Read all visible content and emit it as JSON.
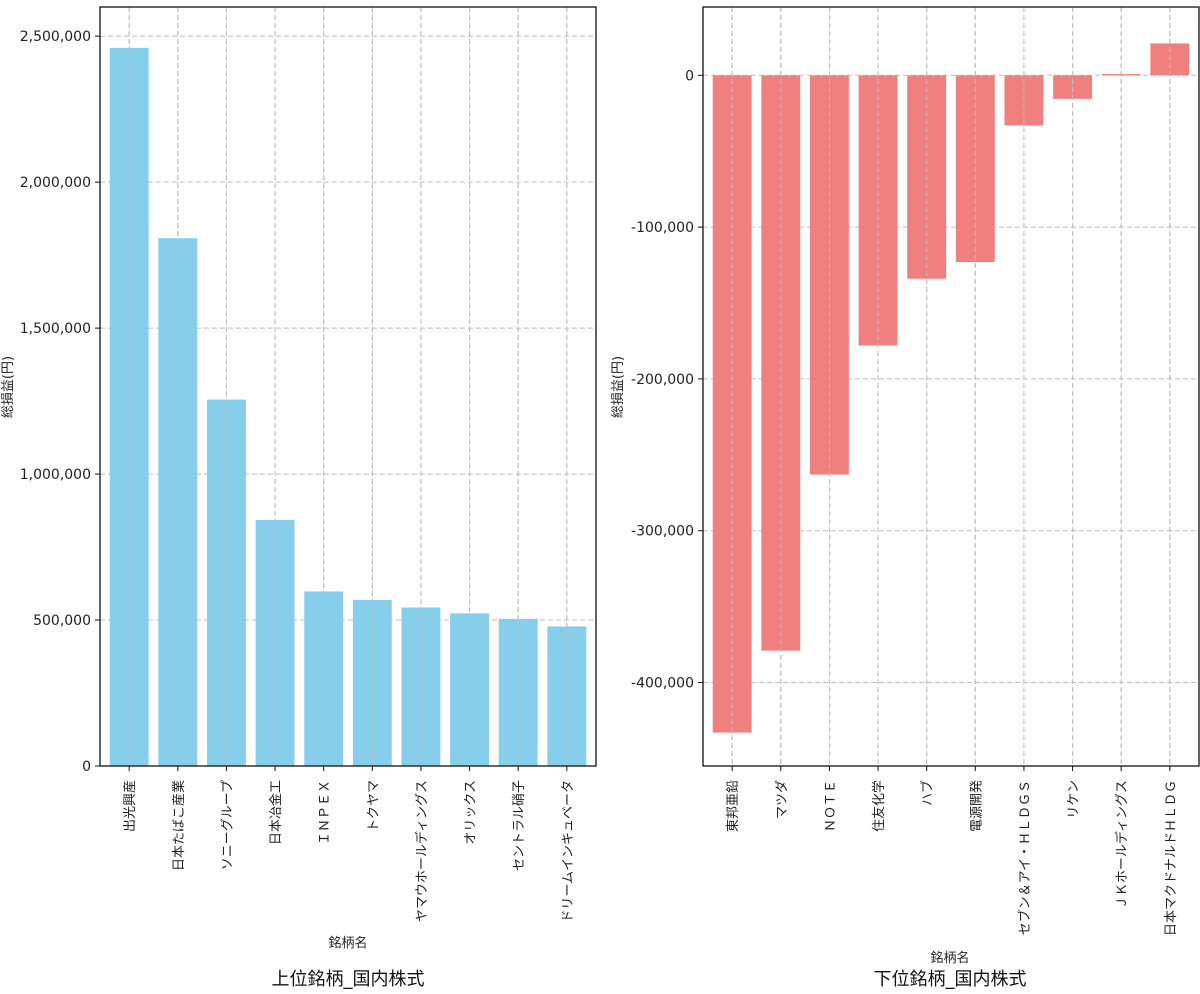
{
  "chart_data": [
    {
      "type": "bar",
      "title": "上位銘柄_国内株式",
      "xlabel": "銘柄名",
      "ylabel": "総損益(円)",
      "color": "#87ceeb",
      "categories": [
        "出光興産",
        "日本たばこ産業",
        "ソニーグループ",
        "日本冶金工",
        "ＩＮＰＥＸ",
        "トクヤマ",
        "ヤマウホールディングス",
        "オリックス",
        "セントラル硝子",
        "ドリームインキュベータ"
      ],
      "values": [
        2460000,
        1808000,
        1255000,
        843000,
        598000,
        569000,
        543000,
        523000,
        504000,
        478000
      ],
      "ylim": [
        0,
        2600000
      ],
      "yticks": [
        0,
        500000,
        1000000,
        1500000,
        2000000,
        2500000
      ],
      "ytick_labels": [
        "0",
        "500,000",
        "1,000,000",
        "1,500,000",
        "2,000,000",
        "2,500,000"
      ],
      "grid": true
    },
    {
      "type": "bar",
      "title": "下位銘柄_国内株式",
      "xlabel": "銘柄名",
      "ylabel": "総損益(円)",
      "color": "#f08080",
      "categories": [
        "東邦亜鉛",
        "マツダ",
        "ＮＯＴＥ",
        "住友化学",
        "ハブ",
        "電源開発",
        "セブン＆アイ・ＨＬＤＧＳ",
        "リケン",
        "ＪＫホールディングス",
        "日本マクドナルドＨＬＤＧ"
      ],
      "values": [
        -433000,
        -379000,
        -263000,
        -178000,
        -134000,
        -123000,
        -33000,
        -15500,
        800,
        21000
      ],
      "ylim": [
        -455000,
        45000
      ],
      "yticks": [
        -400000,
        -300000,
        -200000,
        -100000,
        0
      ],
      "ytick_labels": [
        "-400,000",
        "-300,000",
        "-200,000",
        "-100,000",
        "0"
      ],
      "grid": true
    }
  ]
}
